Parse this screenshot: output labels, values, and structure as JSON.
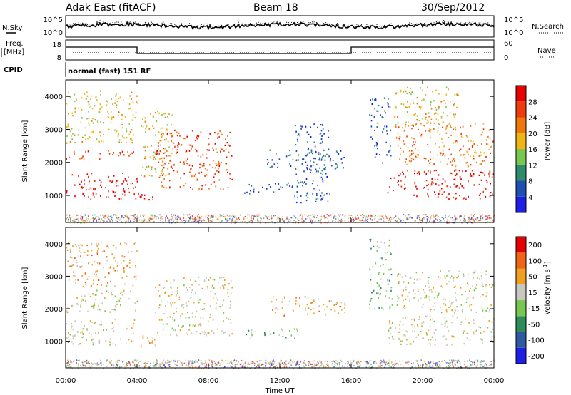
{
  "header": {
    "title": "Adak East (fitACF)",
    "beam": "Beam 18",
    "date": "30/Sep/2012"
  },
  "labels": {
    "nsky": "N.Sky",
    "nsearch": "N.Search",
    "freq_line1": "Freq.",
    "freq_line2": "[MHz]",
    "nave": "Nave",
    "cpid": "CPID",
    "program": "normal (fast) 151 RF"
  },
  "panels": {
    "noise_left_ticks": [
      "10^5",
      "10^0"
    ],
    "noise_right_ticks": [
      "10^5",
      "10^0"
    ],
    "freq_left_ticks": [
      "18",
      "8"
    ],
    "freq_right_ticks": [
      "60",
      "0"
    ]
  },
  "chart_data": [
    {
      "type": "heatmap",
      "name": "power",
      "ylabel": "Slant Range [km]",
      "xlabel": "Time UT",
      "x_ticks": [
        "00:00",
        "04:00",
        "08:00",
        "12:00",
        "16:00",
        "20:00",
        "00:00"
      ],
      "xlim_hours": [
        0,
        24
      ],
      "y_ticks": [
        1000,
        2000,
        3000,
        4000
      ],
      "ylim": [
        180,
        4500
      ],
      "colorbar": {
        "label": "Power [dB]",
        "ticks": [
          4,
          8,
          12,
          16,
          20,
          24,
          28
        ],
        "range": [
          0,
          32
        ],
        "colors": [
          "#1e1ee6",
          "#1e50b4",
          "#2d8c6e",
          "#78c850",
          "#f0b414",
          "#f0780a",
          "#f03c0a",
          "#e60000"
        ]
      },
      "regions": [
        {
          "t0": 0.0,
          "t1": 4.0,
          "r0": 900,
          "r1": 1700,
          "level": 7
        },
        {
          "t0": 0.0,
          "t1": 3.8,
          "r0": 2100,
          "r1": 2400,
          "level": 6
        },
        {
          "t0": 0.0,
          "t1": 4.0,
          "r0": 2600,
          "r1": 4200,
          "level": 4
        },
        {
          "t0": 4.0,
          "t1": 5.0,
          "r0": 820,
          "r1": 1200,
          "level": 7
        },
        {
          "t0": 5.0,
          "t1": 9.3,
          "r0": 1200,
          "r1": 3000,
          "level": 6
        },
        {
          "t0": 4.2,
          "t1": 6.0,
          "r0": 1600,
          "r1": 3600,
          "level": 4
        },
        {
          "t0": 11.2,
          "t1": 15.7,
          "r0": 1800,
          "r1": 2400,
          "level": 1
        },
        {
          "t0": 10.0,
          "t1": 13.0,
          "r0": 1050,
          "r1": 1400,
          "level": 1
        },
        {
          "t0": 12.8,
          "t1": 14.8,
          "r0": 800,
          "r1": 3200,
          "level": 1
        },
        {
          "t0": 17.0,
          "t1": 18.2,
          "r0": 2000,
          "r1": 4000,
          "level": 1
        },
        {
          "t0": 18.0,
          "t1": 24.0,
          "r0": 900,
          "r1": 1800,
          "level": 7
        },
        {
          "t0": 18.5,
          "t1": 24.0,
          "r0": 1900,
          "r1": 3200,
          "level": 5
        },
        {
          "t0": 18.3,
          "t1": 22.0,
          "r0": 3000,
          "r1": 4300,
          "level": 4
        }
      ]
    },
    {
      "type": "heatmap",
      "name": "velocity",
      "ylabel": "Slant Range [km]",
      "xlabel": "Time UT",
      "x_ticks": [
        "00:00",
        "04:00",
        "08:00",
        "12:00",
        "16:00",
        "20:00",
        "00:00"
      ],
      "xlim_hours": [
        0,
        24
      ],
      "y_ticks": [
        1000,
        2000,
        3000,
        4000
      ],
      "ylim": [
        180,
        4500
      ],
      "colorbar": {
        "label": "Velocity [m s^-1]",
        "ticks": [
          200,
          100,
          50,
          15,
          -15,
          -50,
          -100,
          -200
        ],
        "colors": [
          "#1e1ee6",
          "#2d5aa0",
          "#2d8c5a",
          "#78c850",
          "#c8c8c0",
          "#f0a01e",
          "#f06414",
          "#e60000"
        ]
      },
      "regions": [
        {
          "t0": 0.0,
          "t1": 4.0,
          "r0": 900,
          "r1": 1700,
          "level": 4
        },
        {
          "t0": 0.0,
          "t1": 4.0,
          "r0": 1900,
          "r1": 2600,
          "level": 4
        },
        {
          "t0": 0.0,
          "t1": 4.0,
          "r0": 2700,
          "r1": 4100,
          "level": 5
        },
        {
          "t0": 4.0,
          "t1": 5.3,
          "r0": 820,
          "r1": 1200,
          "level": 5
        },
        {
          "t0": 5.0,
          "t1": 9.3,
          "r0": 1200,
          "r1": 3000,
          "level": 4
        },
        {
          "t0": 11.5,
          "t1": 15.7,
          "r0": 1800,
          "r1": 2400,
          "level": 5
        },
        {
          "t0": 10.0,
          "t1": 13.0,
          "r0": 1100,
          "r1": 1400,
          "level": 3
        },
        {
          "t0": 17.0,
          "t1": 18.3,
          "r0": 2000,
          "r1": 4200,
          "level": 3
        },
        {
          "t0": 18.0,
          "t1": 24.0,
          "r0": 900,
          "r1": 1800,
          "level": 4
        },
        {
          "t0": 18.5,
          "t1": 24.0,
          "r0": 1900,
          "r1": 3200,
          "level": 4
        }
      ]
    }
  ]
}
